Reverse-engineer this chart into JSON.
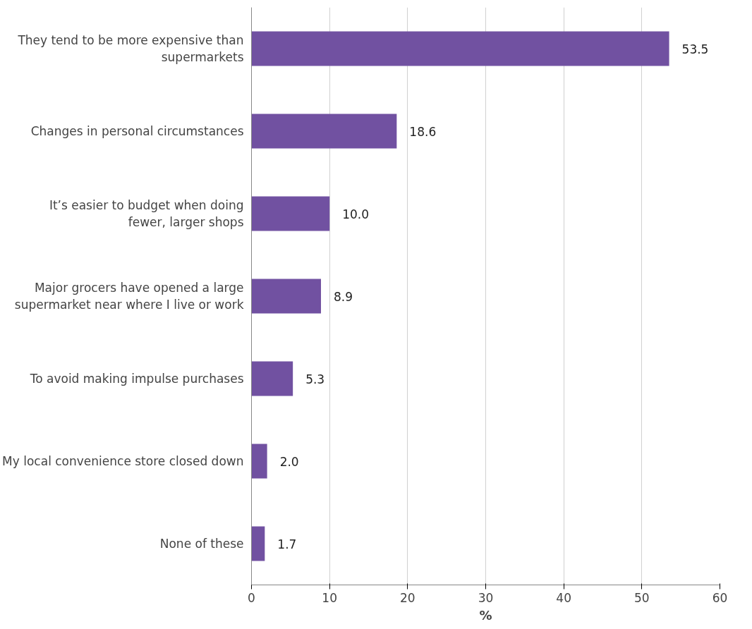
{
  "chart_data": {
    "type": "bar",
    "orientation": "horizontal",
    "categories": [
      "They tend to be more expensive than supermarkets",
      "Changes in personal circumstances",
      "It’s easier to budget when doing fewer, larger shops",
      "Major grocers have opened a large supermarket near where I live or work",
      "To avoid making impulse purchases",
      "My local convenience store closed down",
      "None of these"
    ],
    "values": [
      53.5,
      18.6,
      10.0,
      8.9,
      5.3,
      2.0,
      1.7
    ],
    "value_labels": [
      "53.5",
      "18.6",
      "10.0",
      "8.9",
      "5.3",
      "2.0",
      "1.7"
    ],
    "color": "#7151a1",
    "xlabel": "%",
    "xlim": [
      0,
      60
    ],
    "xticks": [
      0,
      10,
      20,
      30,
      40,
      50,
      60
    ],
    "grid": "x"
  }
}
